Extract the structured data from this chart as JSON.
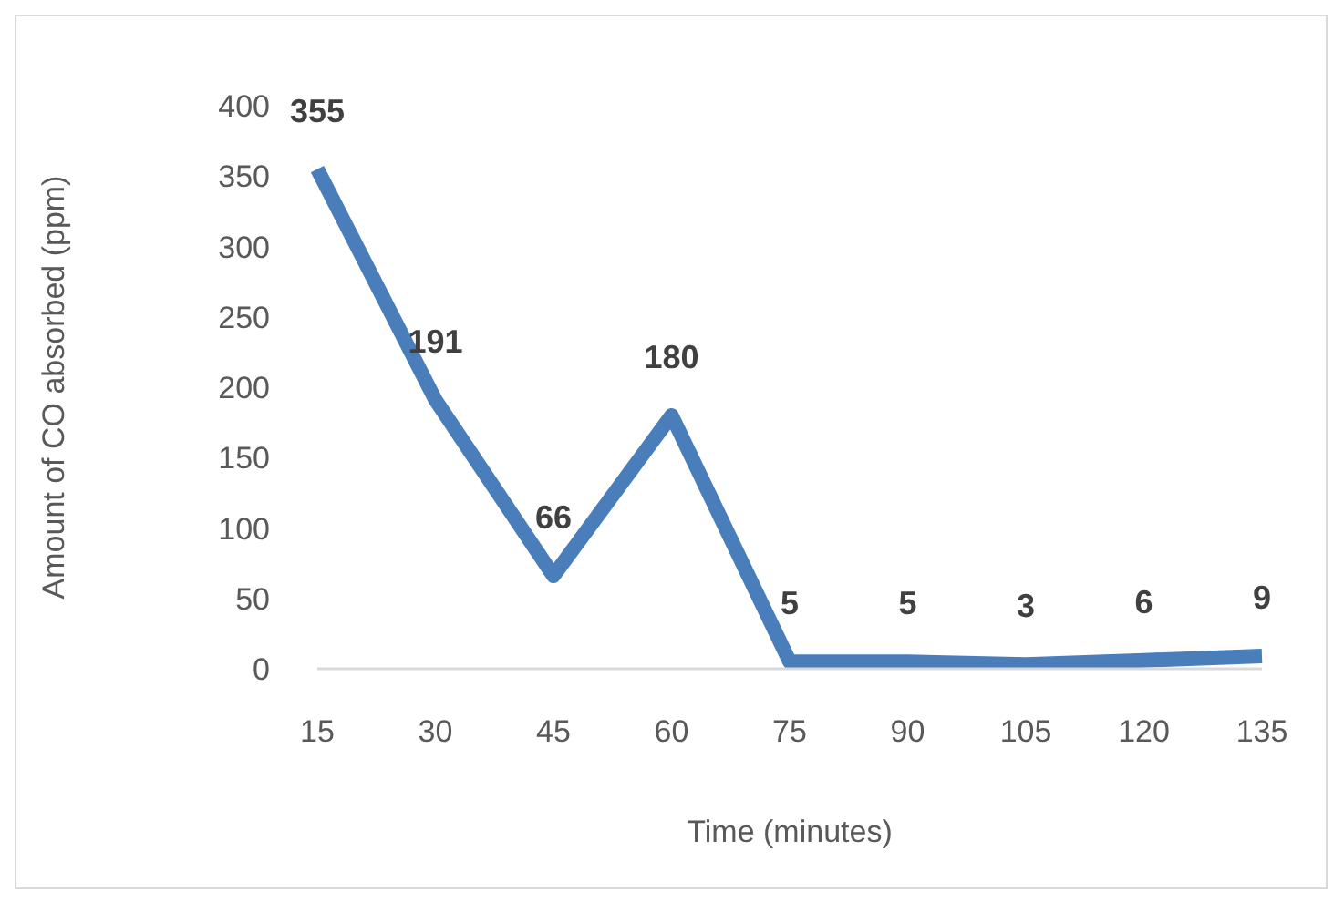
{
  "chart_data": {
    "type": "line",
    "xlabel": "Time (minutes)",
    "ylabel": "Amount of CO absorbed (ppm)",
    "categories": [
      "15",
      "30",
      "45",
      "60",
      "75",
      "90",
      "105",
      "120",
      "135"
    ],
    "series": [
      {
        "color": "#4a7ebb",
        "values": [
          355,
          191,
          66,
          180,
          5,
          5,
          3,
          6,
          9
        ]
      }
    ],
    "ylim": [
      0,
      400
    ],
    "yticks": [
      0,
      50,
      100,
      150,
      200,
      250,
      300,
      350,
      400
    ],
    "data_labels": true,
    "marker": "none"
  }
}
